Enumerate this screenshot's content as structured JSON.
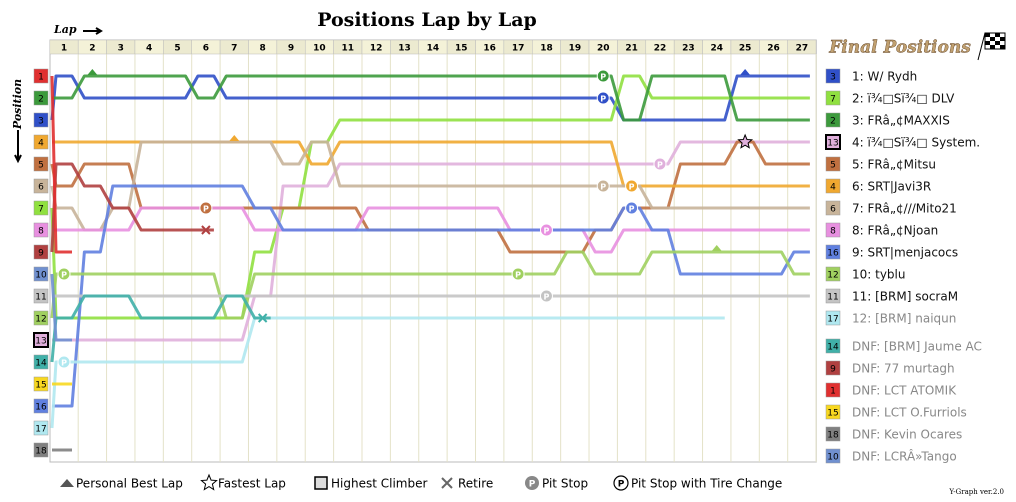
{
  "chart_data": {
    "type": "line",
    "title": "Positions Lap by Lap",
    "x_label": "Lap",
    "y_label": "Position",
    "legend_title": "Final Positions",
    "version": "Y-Graph ver.2.0",
    "pit_symbol": "P",
    "xticks": [
      1,
      2,
      3,
      4,
      5,
      6,
      7,
      8,
      9,
      10,
      11,
      12,
      13,
      14,
      15,
      16,
      17,
      18,
      19,
      20,
      21,
      22,
      23,
      24,
      25,
      26,
      27
    ],
    "yticks": [
      1,
      2,
      3,
      4,
      5,
      6,
      7,
      8,
      9,
      10,
      11,
      12,
      13,
      14,
      15,
      16,
      17,
      18
    ],
    "ylim": [
      1,
      18
    ],
    "y_inverted": true,
    "highest_climber": 3,
    "series": [
      {
        "name": "1: W/ Rydh",
        "start": 3,
        "color": "#3050c8",
        "values": [
          1,
          2,
          2,
          2,
          2,
          1,
          2,
          2,
          2,
          2,
          2,
          2,
          2,
          2,
          2,
          2,
          2,
          2,
          2,
          2,
          3,
          3,
          3,
          3,
          1,
          1,
          1
        ]
      },
      {
        "name": "2: ï¾□Sï¾□ DLV",
        "start": 7,
        "color": "#90e040",
        "values": [
          12,
          12,
          12,
          12,
          12,
          12,
          12,
          9,
          7,
          4,
          3,
          3,
          3,
          3,
          3,
          3,
          3,
          3,
          3,
          3,
          1,
          2,
          2,
          2,
          2,
          2,
          2
        ]
      },
      {
        "name": "3: FRâ„¢MAXXIS",
        "start": 2,
        "color": "#3c9a3c",
        "values": [
          2,
          1,
          1,
          1,
          1,
          2,
          1,
          1,
          1,
          1,
          1,
          1,
          1,
          1,
          1,
          1,
          1,
          1,
          1,
          1,
          3,
          1,
          1,
          1,
          3,
          3,
          3
        ]
      },
      {
        "name": "4: ï¾□Sï¾□ System.",
        "start": 13,
        "color": "#e0b0dc",
        "values": [
          13,
          13,
          13,
          13,
          13,
          13,
          13,
          11,
          6,
          6,
          5,
          5,
          5,
          5,
          5,
          5,
          5,
          5,
          5,
          5,
          5,
          5,
          4,
          4,
          4,
          4,
          4
        ]
      },
      {
        "name": "5: FRâ„¢Mitsu",
        "start": 5,
        "color": "#c07040",
        "values": [
          6,
          5,
          5,
          7,
          7,
          7,
          7,
          7,
          7,
          7,
          7,
          8,
          8,
          8,
          8,
          8,
          9,
          9,
          9,
          8,
          7,
          7,
          5,
          5,
          4,
          5,
          5
        ]
      },
      {
        "name": "6: SRT|Javi3R",
        "start": 4,
        "color": "#f0a830",
        "values": [
          4,
          4,
          4,
          4,
          4,
          4,
          4,
          4,
          4,
          5,
          4,
          4,
          4,
          4,
          4,
          4,
          4,
          4,
          4,
          4,
          6,
          6,
          6,
          6,
          6,
          6,
          6
        ]
      },
      {
        "name": "7: FRâ„¢///Mito21",
        "start": 6,
        "color": "#c8b49a",
        "values": [
          7,
          8,
          7,
          4,
          4,
          4,
          4,
          4,
          5,
          4,
          6,
          6,
          6,
          6,
          6,
          6,
          6,
          6,
          6,
          6,
          6,
          7,
          7,
          7,
          7,
          7,
          7
        ]
      },
      {
        "name": "8: FRâ„¢Njoan",
        "start": 8,
        "color": "#e890e0",
        "values": [
          8,
          8,
          8,
          7,
          7,
          7,
          7,
          8,
          8,
          8,
          8,
          7,
          7,
          7,
          7,
          7,
          8,
          8,
          8,
          9,
          8,
          8,
          8,
          8,
          8,
          8,
          8
        ]
      },
      {
        "name": "9: SRT|menjacocs",
        "start": 16,
        "color": "#6080e0",
        "values": [
          16,
          9,
          6,
          6,
          6,
          6,
          6,
          7,
          8,
          8,
          8,
          8,
          8,
          8,
          8,
          8,
          8,
          8,
          8,
          8,
          7,
          8,
          10,
          10,
          10,
          10,
          9
        ]
      },
      {
        "name": "10: tyblu",
        "start": 12,
        "color": "#a0d060",
        "values": [
          10,
          10,
          10,
          10,
          10,
          10,
          12,
          10,
          10,
          10,
          10,
          10,
          10,
          10,
          10,
          10,
          10,
          10,
          9,
          10,
          10,
          9,
          9,
          9,
          9,
          9,
          10
        ]
      },
      {
        "name": "11: [BRM] socraM",
        "start": 11,
        "color": "#c4c4c4",
        "values": [
          11,
          11,
          11,
          11,
          11,
          11,
          11,
          11,
          11,
          11,
          11,
          11,
          11,
          11,
          11,
          11,
          11,
          11,
          11,
          11,
          11,
          11,
          11,
          11,
          11,
          11,
          11
        ]
      },
      {
        "name": "12: [BRM] naiqun",
        "start": 17,
        "color": "#b0e8f0",
        "values": [
          14,
          14,
          14,
          14,
          14,
          14,
          14,
          12,
          12,
          12,
          12,
          12,
          12,
          12,
          12,
          12,
          12,
          12,
          12,
          12,
          12,
          12,
          12,
          12,
          null,
          null,
          null
        ]
      },
      {
        "name": "DNF: [BRM] Jaume AC",
        "start": 14,
        "color": "#40b0a8",
        "values": [
          12,
          11,
          11,
          12,
          12,
          12,
          11,
          12,
          null,
          null,
          null,
          null,
          null,
          null,
          null,
          null,
          null,
          null,
          null,
          null,
          null,
          null,
          null,
          null,
          null,
          null,
          null
        ]
      },
      {
        "name": "DNF: 77 murtagh",
        "start": 9,
        "color": "#b04040",
        "values": [
          5,
          6,
          7,
          8,
          8,
          8,
          null,
          null,
          null,
          null,
          null,
          null,
          null,
          null,
          null,
          null,
          null,
          null,
          null,
          null,
          null,
          null,
          null,
          null,
          null,
          null,
          null
        ]
      },
      {
        "name": "DNF: LCT ATOMIK",
        "start": 1,
        "color": "#e03030",
        "values": [
          9,
          null,
          null,
          null,
          null,
          null,
          null,
          null,
          null,
          null,
          null,
          null,
          null,
          null,
          null,
          null,
          null,
          null,
          null,
          null,
          null,
          null,
          null,
          null,
          null,
          null,
          null
        ]
      },
      {
        "name": "DNF: LCT O.Furriols",
        "start": 15,
        "color": "#f8d820",
        "values": [
          15,
          null,
          null,
          null,
          null,
          null,
          null,
          null,
          null,
          null,
          null,
          null,
          null,
          null,
          null,
          null,
          null,
          null,
          null,
          null,
          null,
          null,
          null,
          null,
          null,
          null,
          null
        ]
      },
      {
        "name": "DNF: Kevin Ocares",
        "start": 18,
        "color": "#808080",
        "values": [
          18,
          null,
          null,
          null,
          null,
          null,
          null,
          null,
          null,
          null,
          null,
          null,
          null,
          null,
          null,
          null,
          null,
          null,
          null,
          null,
          null,
          null,
          null,
          null,
          null,
          null,
          null
        ]
      },
      {
        "name": "DNF: LCRÂ»Tango",
        "start": 10,
        "color": "#7090d0",
        "values": [
          13,
          null,
          null,
          null,
          null,
          null,
          null,
          null,
          null,
          null,
          null,
          null,
          null,
          null,
          null,
          null,
          null,
          null,
          null,
          null,
          null,
          null,
          null,
          null,
          null,
          null,
          null
        ]
      }
    ],
    "markers": [
      {
        "series": 0,
        "lap": 20,
        "kind": "pit"
      },
      {
        "series": 2,
        "lap": 20,
        "kind": "pit"
      },
      {
        "series": 5,
        "lap": 21,
        "kind": "pit"
      },
      {
        "series": 8,
        "lap": 21,
        "kind": "pit"
      },
      {
        "series": 6,
        "lap": 20,
        "kind": "pit"
      },
      {
        "series": 7,
        "lap": 18,
        "kind": "pit"
      },
      {
        "series": 9,
        "lap": 17,
        "kind": "pit"
      },
      {
        "series": 9,
        "lap": 1,
        "kind": "pit"
      },
      {
        "series": 4,
        "lap": 6,
        "kind": "pit"
      },
      {
        "series": 10,
        "lap": 18,
        "kind": "pit"
      },
      {
        "series": 11,
        "lap": 1,
        "kind": "pit"
      },
      {
        "series": 3,
        "lap": 22,
        "kind": "pit"
      },
      {
        "series": 3,
        "lap": 25,
        "kind": "fastest"
      },
      {
        "series": 13,
        "lap": 6,
        "kind": "retire"
      },
      {
        "series": 12,
        "lap": 8,
        "kind": "retire"
      },
      {
        "series": 2,
        "lap": 2,
        "kind": "best"
      },
      {
        "series": 5,
        "lap": 7,
        "kind": "best"
      },
      {
        "series": 0,
        "lap": 25,
        "kind": "best"
      },
      {
        "series": 9,
        "lap": 24,
        "kind": "best"
      }
    ],
    "legend_items": [
      "Personal Best Lap",
      "Fastest Lap",
      "Highest Climber",
      "Retire",
      "Pit Stop",
      "Pit Stop with Tire Change"
    ]
  }
}
